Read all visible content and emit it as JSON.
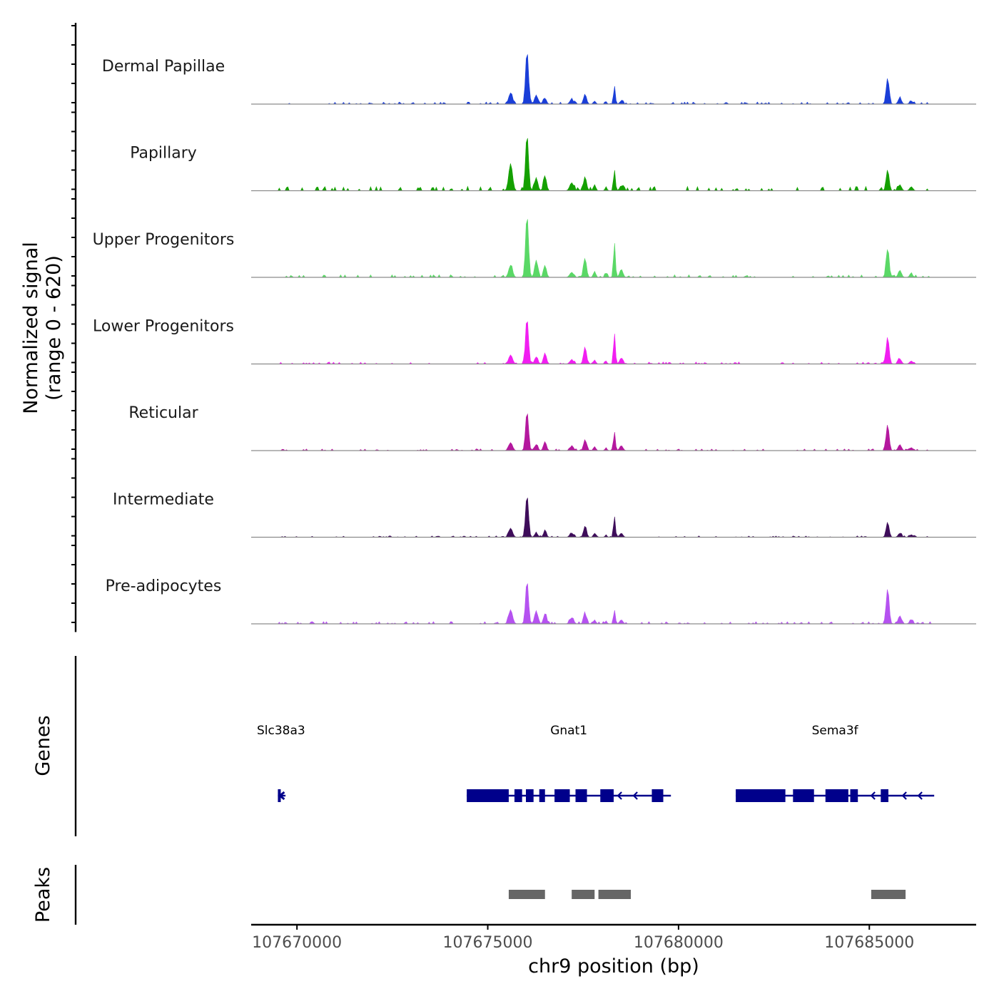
{
  "chart_data": {
    "type": "area",
    "title": "",
    "xlabel": "chr9 position (bp)",
    "xlim": [
      107668800,
      107687800
    ],
    "x_ticks": [
      107670000,
      107675000,
      107680000,
      107685000
    ],
    "x_tick_labels": [
      "107670000",
      "107675000",
      "107680000",
      "107685000"
    ],
    "coverage": {
      "ylabel_line1": "Normalized signal",
      "ylabel_line2": "(range 0 - 620)",
      "ylim": [
        0,
        620
      ],
      "data_range": [
        107669500,
        107686700
      ],
      "shared_peaks": [
        {
          "x": 107675600,
          "w": 70
        },
        {
          "x": 107676030,
          "w": 55
        },
        {
          "x": 107676270,
          "w": 60
        },
        {
          "x": 107676500,
          "w": 55
        },
        {
          "x": 107677200,
          "w": 70
        },
        {
          "x": 107677550,
          "w": 55
        },
        {
          "x": 107677800,
          "w": 45
        },
        {
          "x": 107678100,
          "w": 35
        },
        {
          "x": 107678320,
          "w": 35
        },
        {
          "x": 107678500,
          "w": 60
        },
        {
          "x": 107685480,
          "w": 55
        },
        {
          "x": 107685800,
          "w": 60
        },
        {
          "x": 107686100,
          "w": 60
        }
      ],
      "tracks": [
        {
          "name": "Dermal Papillae",
          "color": "#1a3ed8",
          "heights": [
            110,
            530,
            90,
            60,
            40,
            100,
            30,
            25,
            170,
            30,
            260,
            60,
            30
          ],
          "noise": 14
        },
        {
          "name": "Papillary",
          "color": "#14a000",
          "heights": [
            270,
            560,
            130,
            150,
            80,
            140,
            60,
            40,
            210,
            50,
            210,
            60,
            40
          ],
          "noise": 30
        },
        {
          "name": "Upper Progenitors",
          "color": "#5ad866",
          "heights": [
            120,
            620,
            150,
            120,
            50,
            190,
            60,
            40,
            350,
            80,
            280,
            70,
            30
          ],
          "noise": 18
        },
        {
          "name": "Lower Progenitors",
          "color": "#f11ef1",
          "heights": [
            90,
            450,
            70,
            110,
            40,
            170,
            40,
            30,
            310,
            60,
            270,
            50,
            30
          ],
          "noise": 14
        },
        {
          "name": "Reticular",
          "color": "#b4189e",
          "heights": [
            80,
            390,
            60,
            90,
            40,
            110,
            40,
            30,
            190,
            50,
            260,
            60,
            30
          ],
          "noise": 12
        },
        {
          "name": "Intermediate",
          "color": "#3e0d5a",
          "heights": [
            90,
            420,
            40,
            60,
            40,
            110,
            40,
            25,
            210,
            40,
            150,
            40,
            25
          ],
          "noise": 10
        },
        {
          "name": "Pre-adipocytes",
          "color": "#b552f0",
          "heights": [
            140,
            430,
            130,
            100,
            60,
            100,
            40,
            30,
            140,
            40,
            350,
            80,
            40
          ],
          "noise": 16
        }
      ]
    },
    "genes": {
      "label": "Genes",
      "color": "#00008b",
      "items": [
        {
          "name": "Slc38a3",
          "start": 107669500,
          "end": 107669700,
          "strand": "-",
          "exons": [
            [
              107669500,
              107669560
            ]
          ]
        },
        {
          "name": "Gnat1",
          "start": 107674450,
          "end": 107679800,
          "strand": "-",
          "exons": [
            [
              107674450,
              107675550
            ],
            [
              107675700,
              107675900
            ],
            [
              107676000,
              107676200
            ],
            [
              107676350,
              107676500
            ],
            [
              107676750,
              107677150
            ],
            [
              107677300,
              107677600
            ],
            [
              107677950,
              107678300
            ],
            [
              107679300,
              107679600
            ]
          ]
        },
        {
          "name": "Sema3f",
          "start": 107681500,
          "end": 107686700,
          "strand": "-",
          "exons": [
            [
              107681500,
              107682800
            ],
            [
              107683000,
              107683550
            ],
            [
              107683850,
              107684450
            ],
            [
              107684500,
              107684700
            ],
            [
              107685300,
              107685500
            ]
          ]
        }
      ]
    },
    "peaks": {
      "label": "Peaks",
      "color": "#666666",
      "items": [
        {
          "start": 107675550,
          "end": 107676500
        },
        {
          "start": 107677200,
          "end": 107677800
        },
        {
          "start": 107677900,
          "end": 107678750
        },
        {
          "start": 107685050,
          "end": 107685950
        }
      ]
    }
  }
}
